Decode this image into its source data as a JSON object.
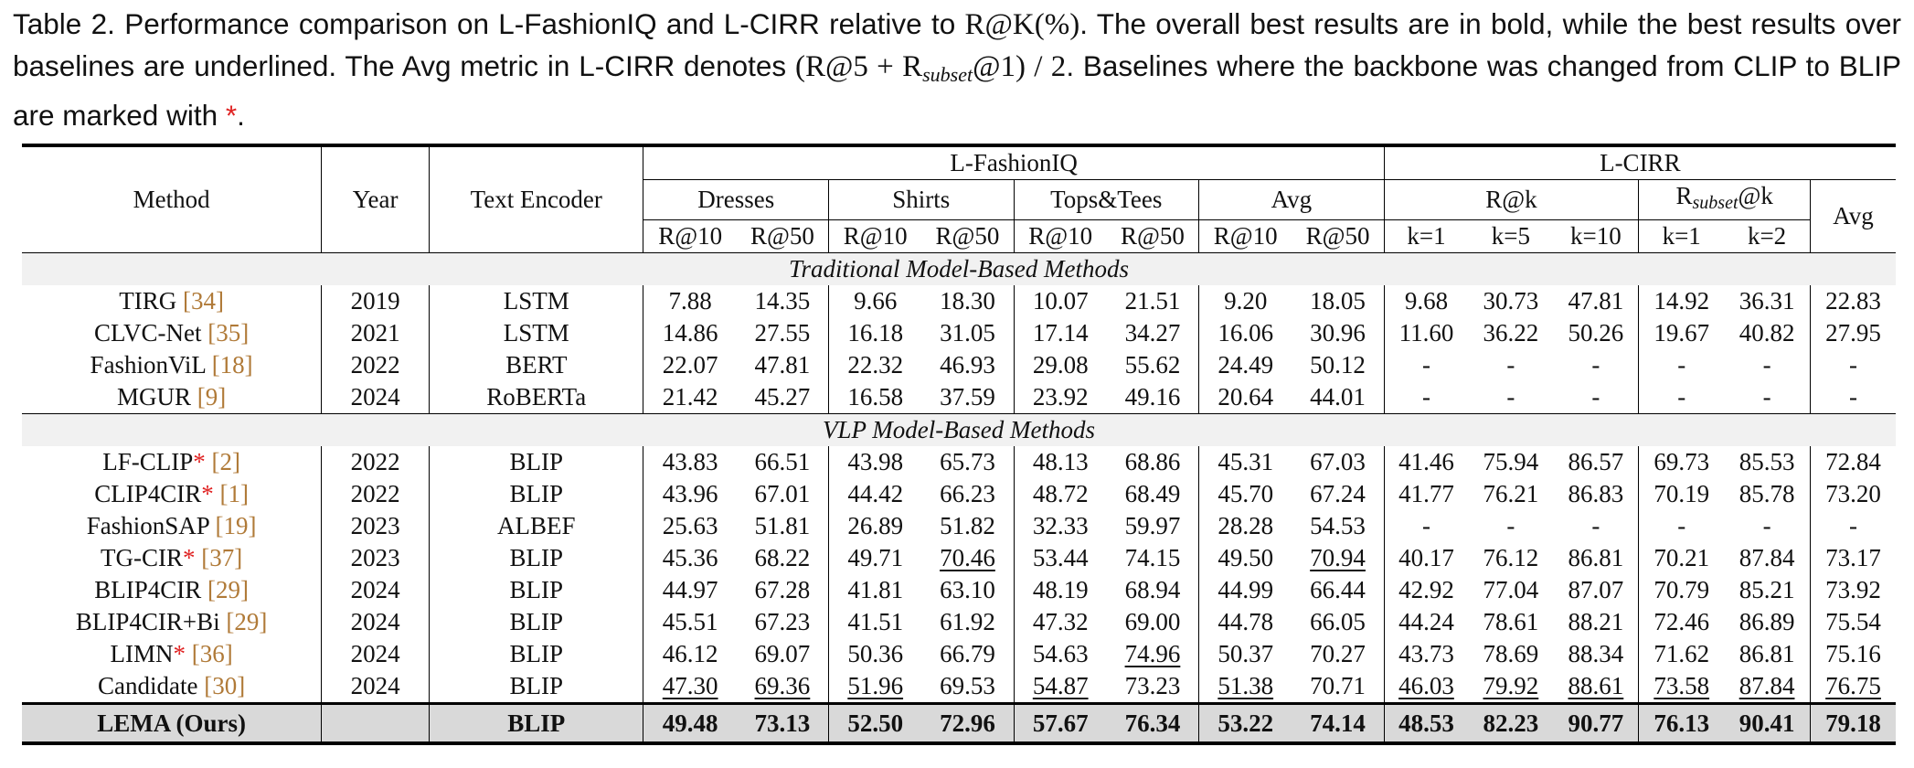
{
  "caption": {
    "p1": "Table 2.  Performance comparison on L-FashionIQ and L-CIRR relative to ",
    "metric_main": "R@K(%)",
    "p2": ".  The overall best results are in bold, while the best results over baselines are underlined.  The Avg metric in L-CIRR denotes ",
    "formula_a": "(R@5 + R",
    "formula_sub": "subset",
    "formula_b": "@1) / 2",
    "p3": ".  Baselines where the backbone was changed from CLIP to BLIP are marked with ",
    "marker": "*",
    "end": "."
  },
  "headers": {
    "method": "Method",
    "year": "Year",
    "text_encoder": "Text Encoder",
    "fiq": "L-FashionIQ",
    "cirr": "L-CIRR",
    "dresses": "Dresses",
    "shirts": "Shirts",
    "topstees": "Tops&Tees",
    "avg": "Avg",
    "rk": "R@k",
    "rsub_r": "R",
    "rsub_sub": "subset",
    "rsub_k": "@k",
    "cirr_avg": "Avg",
    "r10": "R@10",
    "r50": "R@50",
    "k1": "k=1",
    "k5": "k=5",
    "k10": "k=10",
    "sk1": "k=1",
    "sk2": "k=2"
  },
  "sections": {
    "traditional": "Traditional Model-Based Methods",
    "vlp": "VLP Model-Based Methods"
  },
  "rows_traditional": [
    {
      "name": "TIRG",
      "star": "",
      "cite": "[34]",
      "year": "2019",
      "enc": "LSTM",
      "v": [
        "7.88",
        "14.35",
        "9.66",
        "18.30",
        "10.07",
        "21.51",
        "9.20",
        "18.05",
        "9.68",
        "30.73",
        "47.81",
        "14.92",
        "36.31",
        "22.83"
      ],
      "u": []
    },
    {
      "name": "CLVC-Net",
      "star": "",
      "cite": "[35]",
      "year": "2021",
      "enc": "LSTM",
      "v": [
        "14.86",
        "27.55",
        "16.18",
        "31.05",
        "17.14",
        "34.27",
        "16.06",
        "30.96",
        "11.60",
        "36.22",
        "50.26",
        "19.67",
        "40.82",
        "27.95"
      ],
      "u": []
    },
    {
      "name": "FashionViL",
      "star": "",
      "cite": "[18]",
      "year": "2022",
      "enc": "BERT",
      "v": [
        "22.07",
        "47.81",
        "22.32",
        "46.93",
        "29.08",
        "55.62",
        "24.49",
        "50.12",
        "-",
        "-",
        "-",
        "-",
        "-",
        "-"
      ],
      "u": []
    },
    {
      "name": "MGUR",
      "star": "",
      "cite": "[9]",
      "year": "2024",
      "enc": "RoBERTa",
      "v": [
        "21.42",
        "45.27",
        "16.58",
        "37.59",
        "23.92",
        "49.16",
        "20.64",
        "44.01",
        "-",
        "-",
        "-",
        "-",
        "-",
        "-"
      ],
      "u": []
    }
  ],
  "rows_vlp": [
    {
      "name": "LF-CLIP",
      "star": "*",
      "cite": "[2]",
      "year": "2022",
      "enc": "BLIP",
      "v": [
        "43.83",
        "66.51",
        "43.98",
        "65.73",
        "48.13",
        "68.86",
        "45.31",
        "67.03",
        "41.46",
        "75.94",
        "86.57",
        "69.73",
        "85.53",
        "72.84"
      ],
      "u": []
    },
    {
      "name": "CLIP4CIR",
      "star": "*",
      "cite": "[1]",
      "year": "2022",
      "enc": "BLIP",
      "v": [
        "43.96",
        "67.01",
        "44.42",
        "66.23",
        "48.72",
        "68.49",
        "45.70",
        "67.24",
        "41.77",
        "76.21",
        "86.83",
        "70.19",
        "85.78",
        "73.20"
      ],
      "u": []
    },
    {
      "name": "FashionSAP",
      "star": "",
      "cite": "[19]",
      "year": "2023",
      "enc": "ALBEF",
      "v": [
        "25.63",
        "51.81",
        "26.89",
        "51.82",
        "32.33",
        "59.97",
        "28.28",
        "54.53",
        "-",
        "-",
        "-",
        "-",
        "-",
        "-"
      ],
      "u": []
    },
    {
      "name": "TG-CIR",
      "star": "*",
      "cite": "[37]",
      "year": "2023",
      "enc": "BLIP",
      "v": [
        "45.36",
        "68.22",
        "49.71",
        "70.46",
        "53.44",
        "74.15",
        "49.50",
        "70.94",
        "40.17",
        "76.12",
        "86.81",
        "70.21",
        "87.84",
        "73.17"
      ],
      "u": [
        3,
        7
      ]
    },
    {
      "name": "BLIP4CIR",
      "star": "",
      "cite": "[29]",
      "year": "2024",
      "enc": "BLIP",
      "v": [
        "44.97",
        "67.28",
        "41.81",
        "63.10",
        "48.19",
        "68.94",
        "44.99",
        "66.44",
        "42.92",
        "77.04",
        "87.07",
        "70.79",
        "85.21",
        "73.92"
      ],
      "u": []
    },
    {
      "name": "BLIP4CIR+Bi",
      "star": "",
      "cite": "[29]",
      "year": "2024",
      "enc": "BLIP",
      "v": [
        "45.51",
        "67.23",
        "41.51",
        "61.92",
        "47.32",
        "69.00",
        "44.78",
        "66.05",
        "44.24",
        "78.61",
        "88.21",
        "72.46",
        "86.89",
        "75.54"
      ],
      "u": []
    },
    {
      "name": "LIMN",
      "star": "*",
      "cite": "[36]",
      "year": "2024",
      "enc": "BLIP",
      "v": [
        "46.12",
        "69.07",
        "50.36",
        "66.79",
        "54.63",
        "74.96",
        "50.37",
        "70.27",
        "43.73",
        "78.69",
        "88.34",
        "71.62",
        "86.81",
        "75.16"
      ],
      "u": [
        5
      ]
    },
    {
      "name": "Candidate",
      "star": "",
      "cite": "[30]",
      "year": "2024",
      "enc": "BLIP",
      "v": [
        "47.30",
        "69.36",
        "51.96",
        "69.53",
        "54.87",
        "73.23",
        "51.38",
        "70.71",
        "46.03",
        "79.92",
        "88.61",
        "73.58",
        "87.84",
        "76.75"
      ],
      "u": [
        0,
        1,
        2,
        4,
        6,
        8,
        9,
        10,
        11,
        12,
        13
      ]
    }
  ],
  "ours": {
    "name": "LEMA (Ours)",
    "year": "",
    "enc": "BLIP",
    "v": [
      "49.48",
      "73.13",
      "52.50",
      "72.96",
      "57.67",
      "76.34",
      "53.22",
      "74.14",
      "48.53",
      "82.23",
      "90.77",
      "76.13",
      "90.41",
      "79.18"
    ]
  }
}
